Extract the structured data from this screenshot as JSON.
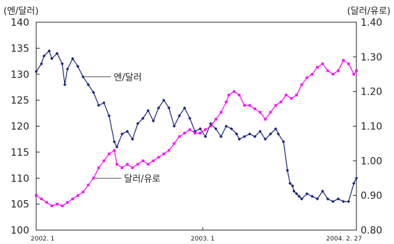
{
  "chart_data": {
    "type": "line",
    "title": "",
    "y_left": {
      "unit_label": "(엔/달러)",
      "min": 100,
      "max": 140,
      "ticks": [
        100,
        105,
        110,
        115,
        120,
        125,
        130,
        135,
        140
      ],
      "tick_labels": [
        "100",
        "105",
        "110",
        "115",
        "120",
        "125",
        "130",
        "135",
        "140"
      ]
    },
    "y_right": {
      "unit_label": "(달러/유로)",
      "min": 0.8,
      "max": 1.4,
      "ticks": [
        0.8,
        0.9,
        1.0,
        1.1,
        1.2,
        1.3,
        1.4
      ],
      "tick_labels": [
        "0.80",
        "0.90",
        "1.00",
        "1.10",
        "1.20",
        "1.30",
        "1.40"
      ]
    },
    "x_ticks": [
      {
        "label": "2002. 1",
        "pos": 0.0
      },
      {
        "label": "2003. 1",
        "pos": 0.52
      },
      {
        "label": "2004. 2. 27",
        "pos": 1.0
      }
    ],
    "grid": false,
    "series": [
      {
        "name": "엔/달러",
        "axis": "left",
        "color": "#1a237e",
        "marker": "diamond",
        "points": [
          [
            0.0,
            130.5
          ],
          [
            0.02,
            132.0
          ],
          [
            0.03,
            133.5
          ],
          [
            0.05,
            134.5
          ],
          [
            0.06,
            133.0
          ],
          [
            0.08,
            134.0
          ],
          [
            0.1,
            132.0
          ],
          [
            0.11,
            128.0
          ],
          [
            0.12,
            131.0
          ],
          [
            0.14,
            133.0
          ],
          [
            0.16,
            131.5
          ],
          [
            0.18,
            129.5
          ],
          [
            0.2,
            128.0
          ],
          [
            0.22,
            126.5
          ],
          [
            0.24,
            124.0
          ],
          [
            0.26,
            124.5
          ],
          [
            0.28,
            122.0
          ],
          [
            0.3,
            117.0
          ],
          [
            0.31,
            116.0
          ],
          [
            0.33,
            118.5
          ],
          [
            0.35,
            119.0
          ],
          [
            0.37,
            117.5
          ],
          [
            0.39,
            120.5
          ],
          [
            0.41,
            121.5
          ],
          [
            0.43,
            123.0
          ],
          [
            0.45,
            121.0
          ],
          [
            0.47,
            123.5
          ],
          [
            0.49,
            125.0
          ],
          [
            0.51,
            123.5
          ],
          [
            0.53,
            120.0
          ],
          [
            0.55,
            122.0
          ],
          [
            0.57,
            123.5
          ],
          [
            0.59,
            121.5
          ],
          [
            0.61,
            119.0
          ],
          [
            0.63,
            119.5
          ],
          [
            0.65,
            118.0
          ],
          [
            0.67,
            120.5
          ],
          [
            0.69,
            119.5
          ],
          [
            0.71,
            118.0
          ],
          [
            0.73,
            120.0
          ],
          [
            0.75,
            119.5
          ],
          [
            0.77,
            118.5
          ],
          [
            0.78,
            117.5
          ],
          [
            0.8,
            118.0
          ],
          [
            0.82,
            118.5
          ],
          [
            0.84,
            118.0
          ],
          [
            0.86,
            119.0
          ],
          [
            0.88,
            117.5
          ],
          [
            0.9,
            118.5
          ],
          [
            0.92,
            119.5
          ],
          [
            0.93,
            118.5
          ],
          [
            0.95,
            117.0
          ],
          [
            0.965,
            111.5
          ],
          [
            0.975,
            109.0
          ],
          [
            0.985,
            108.5
          ],
          [
            0.99,
            107.5
          ],
          [
            1.0,
            107.0
          ],
          [
            1.01,
            106.5
          ],
          [
            1.02,
            106.0
          ],
          [
            1.04,
            107.0
          ],
          [
            1.06,
            106.5
          ],
          [
            1.08,
            106.0
          ],
          [
            1.1,
            107.5
          ],
          [
            1.12,
            106.0
          ],
          [
            1.14,
            105.5
          ],
          [
            1.16,
            106.0
          ],
          [
            1.18,
            105.5
          ],
          [
            1.2,
            105.5
          ],
          [
            1.22,
            109.0
          ],
          [
            1.23,
            110.0
          ]
        ]
      },
      {
        "name": "달러/유로",
        "axis": "right",
        "color": "#ff00ff",
        "marker": "square",
        "points": [
          [
            0.0,
            0.9
          ],
          [
            0.02,
            0.89
          ],
          [
            0.04,
            0.88
          ],
          [
            0.06,
            0.87
          ],
          [
            0.08,
            0.875
          ],
          [
            0.1,
            0.87
          ],
          [
            0.12,
            0.88
          ],
          [
            0.14,
            0.89
          ],
          [
            0.16,
            0.9
          ],
          [
            0.18,
            0.91
          ],
          [
            0.2,
            0.93
          ],
          [
            0.22,
            0.95
          ],
          [
            0.24,
            0.98
          ],
          [
            0.26,
            1.0
          ],
          [
            0.28,
            1.02
          ],
          [
            0.3,
            1.03
          ],
          [
            0.31,
            0.99
          ],
          [
            0.33,
            0.98
          ],
          [
            0.35,
            0.99
          ],
          [
            0.37,
            0.98
          ],
          [
            0.39,
            0.99
          ],
          [
            0.41,
            1.0
          ],
          [
            0.43,
            0.99
          ],
          [
            0.45,
            1.0
          ],
          [
            0.47,
            1.01
          ],
          [
            0.49,
            1.02
          ],
          [
            0.51,
            1.03
          ],
          [
            0.53,
            1.05
          ],
          [
            0.55,
            1.07
          ],
          [
            0.57,
            1.08
          ],
          [
            0.59,
            1.09
          ],
          [
            0.61,
            1.08
          ],
          [
            0.63,
            1.08
          ],
          [
            0.65,
            1.09
          ],
          [
            0.67,
            1.1
          ],
          [
            0.69,
            1.12
          ],
          [
            0.71,
            1.14
          ],
          [
            0.73,
            1.17
          ],
          [
            0.74,
            1.19
          ],
          [
            0.76,
            1.2
          ],
          [
            0.78,
            1.19
          ],
          [
            0.8,
            1.16
          ],
          [
            0.82,
            1.16
          ],
          [
            0.84,
            1.15
          ],
          [
            0.86,
            1.14
          ],
          [
            0.88,
            1.12
          ],
          [
            0.9,
            1.14
          ],
          [
            0.92,
            1.16
          ],
          [
            0.94,
            1.17
          ],
          [
            0.96,
            1.19
          ],
          [
            0.98,
            1.18
          ],
          [
            1.0,
            1.19
          ],
          [
            1.02,
            1.22
          ],
          [
            1.04,
            1.24
          ],
          [
            1.06,
            1.25
          ],
          [
            1.08,
            1.27
          ],
          [
            1.1,
            1.28
          ],
          [
            1.12,
            1.26
          ],
          [
            1.14,
            1.25
          ],
          [
            1.16,
            1.26
          ],
          [
            1.18,
            1.29
          ],
          [
            1.2,
            1.28
          ],
          [
            1.22,
            1.25
          ],
          [
            1.23,
            1.26
          ]
        ]
      }
    ],
    "annotations": [
      {
        "text": "엔/달러",
        "series": 0,
        "at": 0.18
      },
      {
        "text": "달러/유로",
        "series": 1,
        "at": 0.22
      }
    ]
  }
}
